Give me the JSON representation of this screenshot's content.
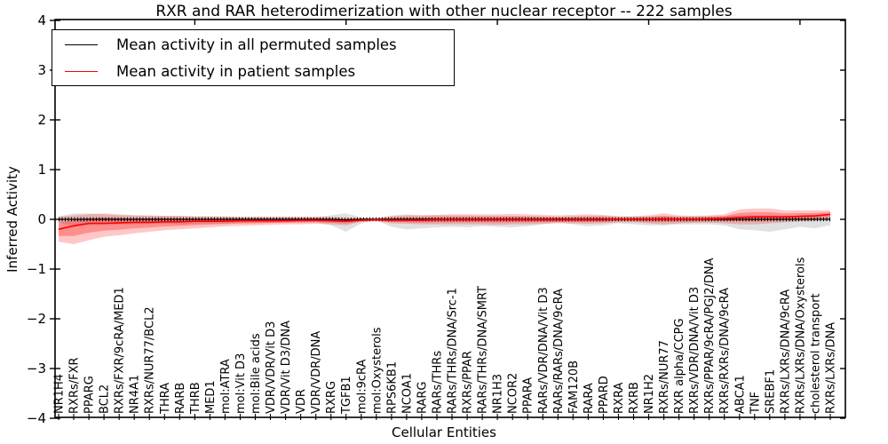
{
  "chart_data": {
    "type": "line",
    "title": "RXR and RAR heterodimerization with other nuclear receptor -- 222 samples",
    "xlabel": "Cellular Entities",
    "ylabel": "Inferred Activity",
    "ylim": [
      -4,
      4
    ],
    "grid": false,
    "ytick_values": [
      -4,
      -3,
      -2,
      -1,
      0,
      1,
      2,
      3,
      4
    ],
    "ytick_labels": [
      "−4",
      "−3",
      "−2",
      "−1",
      "0",
      "1",
      "2",
      "3",
      "4"
    ],
    "legend": {
      "position": "upper left",
      "entries": [
        {
          "label": "Mean activity in all permuted samples",
          "color": "#000000"
        },
        {
          "label": "Mean activity in patient samples",
          "color": "#ff0000"
        }
      ]
    },
    "colors": {
      "permuted_line": "#000000",
      "patient_line": "#ff0000",
      "permuted_band": "#b0b0b0",
      "patient_band": "#ff0000",
      "axis": "#000000",
      "background": "#ffffff"
    },
    "categories": [
      "NR1H4",
      "RXRs/FXR",
      "PPARG",
      "BCL2",
      "RXRs/FXR/9cRA/MED1",
      "NR4A1",
      "RXRs/NUR77/BCL2",
      "THRA",
      "RARB",
      "THRB",
      "MED1",
      "mol:ATRA",
      "mol:Vit D3",
      "mol:Bile acids",
      "VDR/VDR/Vit D3",
      "VDR/Vit D3/DNA",
      "VDR",
      "VDR/VDR/DNA",
      "RXRG",
      "TGFB1",
      "mol:9cRA",
      "mol:Oxysterols",
      "RPS6KB1",
      "NCOA1",
      "RARG",
      "RARs/THRs",
      "RARs/THRs/DNA/Src-1",
      "RXRs/PPAR",
      "RARs/THRs/DNA/SMRT",
      "NR1H3",
      "NCOR2",
      "PPARA",
      "RARs/VDR/DNA/Vit D3",
      "RARs/RARs/DNA/9cRA",
      "FAM120B",
      "RARA",
      "PPARD",
      "RXRA",
      "RXRB",
      "NR1H2",
      "RXRs/NUR77",
      "RXR alpha/CCPG",
      "RXRs/VDR/DNA/Vit D3",
      "RXRs/PPAR/9cRA/PGJ2/DNA",
      "RXRs/RXRs/DNA/9cRA",
      "ABCA1",
      "TNF",
      "SREBF1",
      "RXRs/LXRs/DNA/9cRA",
      "RXRs/LXRs/DNA/Oxysterols",
      "cholesterol transport",
      "RXRs/LXRs/DNA"
    ],
    "series": [
      {
        "name": "Mean activity in all permuted samples",
        "values": [
          0,
          0,
          0,
          0,
          0,
          0,
          0,
          0,
          0,
          0,
          0,
          0,
          0,
          0,
          0,
          0,
          0,
          0,
          0,
          -0.01,
          0,
          0,
          0,
          0,
          0,
          0,
          0,
          0,
          0,
          0,
          0,
          0,
          0,
          0,
          0,
          0,
          0,
          0,
          0,
          0,
          0,
          0,
          0,
          0,
          0,
          0,
          0,
          0,
          0,
          0,
          0,
          0
        ],
        "band_upper": [
          0.06,
          0.12,
          0.12,
          0.1,
          0.08,
          0.08,
          0.07,
          0.07,
          0.07,
          0.06,
          0.06,
          0.05,
          0.05,
          0.05,
          0.05,
          0.05,
          0.05,
          0.05,
          0.08,
          0.12,
          0.04,
          0.02,
          0.08,
          0.1,
          0.08,
          0.08,
          0.08,
          0.08,
          0.07,
          0.07,
          0.07,
          0.07,
          0.06,
          0.05,
          0.06,
          0.07,
          0.07,
          0.06,
          0.06,
          0.06,
          0.06,
          0.06,
          0.06,
          0.06,
          0.07,
          0.08,
          0.08,
          0.08,
          0.07,
          0.07,
          0.06,
          0.05
        ],
        "band_lower": [
          -0.06,
          -0.15,
          -0.12,
          -0.12,
          -0.1,
          -0.1,
          -0.09,
          -0.09,
          -0.1,
          -0.09,
          -0.08,
          -0.08,
          -0.07,
          -0.07,
          -0.07,
          -0.06,
          -0.06,
          -0.06,
          -0.12,
          -0.25,
          -0.08,
          -0.02,
          -0.15,
          -0.2,
          -0.18,
          -0.16,
          -0.15,
          -0.16,
          -0.14,
          -0.15,
          -0.16,
          -0.14,
          -0.1,
          -0.06,
          -0.1,
          -0.14,
          -0.12,
          -0.08,
          -0.1,
          -0.12,
          -0.12,
          -0.1,
          -0.1,
          -0.1,
          -0.12,
          -0.2,
          -0.22,
          -0.25,
          -0.2,
          -0.15,
          -0.18,
          -0.12
        ]
      },
      {
        "name": "Mean activity in patient samples",
        "values": [
          -0.2,
          -0.13,
          -0.08,
          -0.08,
          -0.07,
          -0.06,
          -0.06,
          -0.05,
          -0.05,
          -0.04,
          -0.04,
          -0.04,
          -0.03,
          -0.03,
          -0.03,
          -0.03,
          -0.02,
          -0.02,
          -0.03,
          -0.04,
          -0.02,
          -0.01,
          -0.02,
          -0.02,
          -0.02,
          -0.01,
          -0.01,
          -0.01,
          -0.01,
          -0.01,
          -0.01,
          -0.01,
          -0.01,
          -0.01,
          -0.01,
          -0.01,
          -0.01,
          0.0,
          0.0,
          0.0,
          0.01,
          0.0,
          0.0,
          0.01,
          0.02,
          0.04,
          0.05,
          0.05,
          0.05,
          0.06,
          0.07,
          0.1
        ],
        "band_upper": [
          0.05,
          0.08,
          0.1,
          0.12,
          0.1,
          0.08,
          0.08,
          0.07,
          0.07,
          0.06,
          0.06,
          0.06,
          0.05,
          0.05,
          0.05,
          0.05,
          0.05,
          0.05,
          0.05,
          0.04,
          0.02,
          0.02,
          0.06,
          0.08,
          0.08,
          0.09,
          0.1,
          0.1,
          0.1,
          0.1,
          0.11,
          0.1,
          0.09,
          0.08,
          0.09,
          0.1,
          0.09,
          0.06,
          0.06,
          0.08,
          0.12,
          0.08,
          0.07,
          0.08,
          0.1,
          0.2,
          0.22,
          0.22,
          0.18,
          0.18,
          0.18,
          0.18
        ],
        "band_lower": [
          -0.45,
          -0.5,
          -0.42,
          -0.35,
          -0.32,
          -0.28,
          -0.25,
          -0.22,
          -0.2,
          -0.18,
          -0.16,
          -0.14,
          -0.13,
          -0.12,
          -0.11,
          -0.1,
          -0.1,
          -0.09,
          -0.1,
          -0.12,
          -0.05,
          -0.03,
          -0.08,
          -0.09,
          -0.1,
          -0.1,
          -0.1,
          -0.1,
          -0.1,
          -0.11,
          -0.1,
          -0.1,
          -0.09,
          -0.08,
          -0.08,
          -0.09,
          -0.08,
          -0.06,
          -0.06,
          -0.08,
          -0.1,
          -0.08,
          -0.07,
          -0.07,
          -0.08,
          -0.1,
          -0.1,
          -0.08,
          -0.06,
          -0.04,
          -0.02,
          0.0
        ]
      }
    ]
  }
}
